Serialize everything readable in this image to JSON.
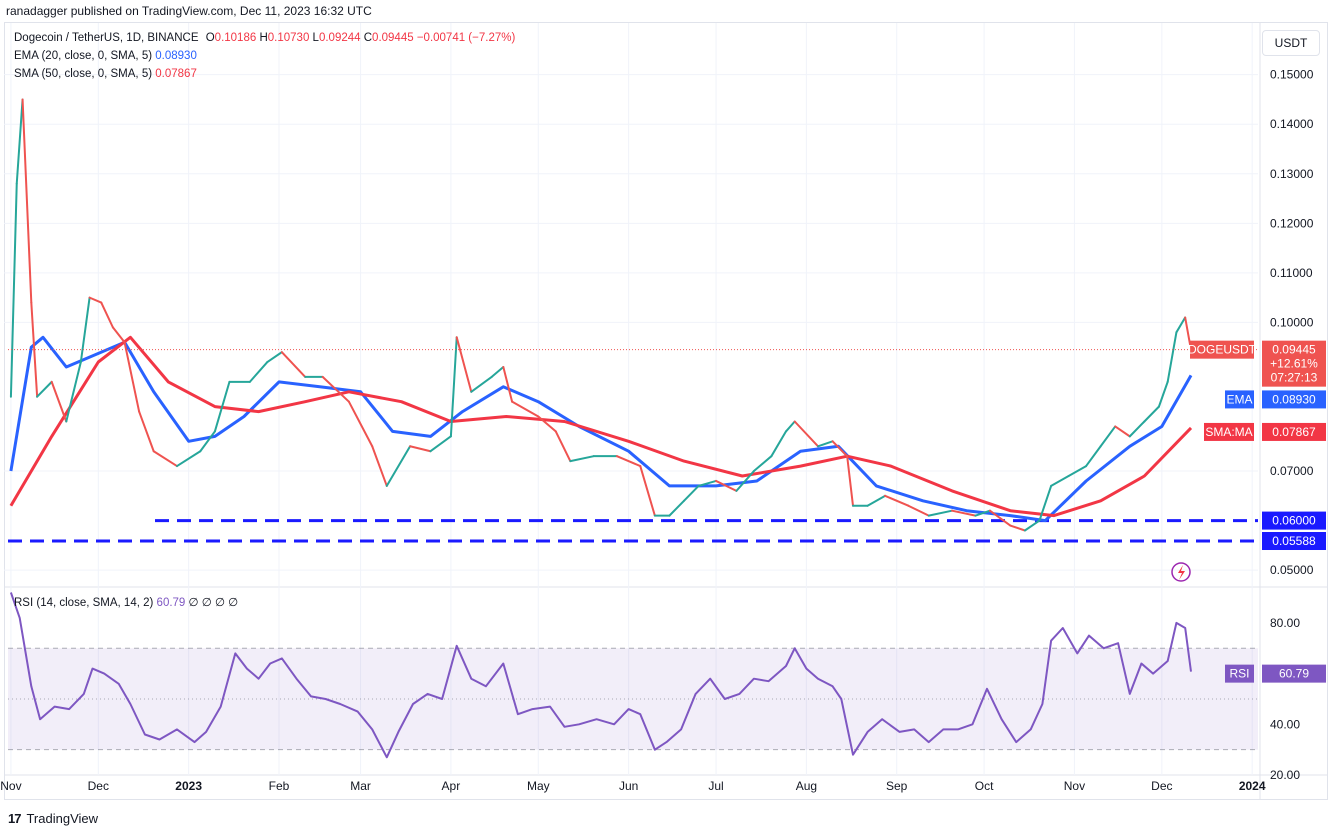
{
  "header": {
    "publisher": "ranadagger published on TradingView.com, Dec 11, 2023 16:32 UTC"
  },
  "legend": {
    "symbol": "Dogecoin / TetherUS, 1D, BINANCE",
    "open_label": "O",
    "open": "0.10186",
    "high_label": "H",
    "high": "0.10730",
    "low_label": "L",
    "low": "0.09244",
    "close_label": "C",
    "close": "0.09445",
    "change": "−0.00741 (−7.27%)",
    "ema_label": "EMA (20, close, 0, SMA, 5)",
    "ema_value": "0.08930",
    "sma_label": "SMA (50, close, 0, SMA, 5)",
    "sma_value": "0.07867",
    "rsi_label": "RSI (14, close, SMA, 14, 2)",
    "rsi_value": "60.79",
    "rsi_extra": "∅ ∅ ∅ ∅"
  },
  "currency_button": "USDT",
  "footer": {
    "brand": "TradingView",
    "logo": "17"
  },
  "colors": {
    "up": "#26a69a",
    "down": "#ef5350",
    "ema": "#2962ff",
    "sma": "#f23645",
    "rsi": "#7e57c2",
    "support": "#1a1aff"
  },
  "chart_data": [
    {
      "type": "candlestick",
      "title": "Dogecoin / TetherUS, 1D, BINANCE",
      "ylim": [
        0.047,
        0.157
      ],
      "y_ticks": [
        "0.15000",
        "0.14000",
        "0.13000",
        "0.12000",
        "0.11000",
        "0.10000",
        "0.07000",
        "0.05000"
      ],
      "x_ticks": [
        "Nov",
        "Dec",
        "2023",
        "Feb",
        "Mar",
        "Apr",
        "May",
        "Jun",
        "Jul",
        "Aug",
        "Sep",
        "Oct",
        "Nov",
        "Dec",
        "2024"
      ],
      "price_series": {
        "name": "DOGEUSDT",
        "points": [
          [
            "2022-11-01",
            0.085
          ],
          [
            "2022-11-03",
            0.128
          ],
          [
            "2022-11-05",
            0.145
          ],
          [
            "2022-11-08",
            0.104
          ],
          [
            "2022-11-10",
            0.085
          ],
          [
            "2022-11-15",
            0.088
          ],
          [
            "2022-11-20",
            0.08
          ],
          [
            "2022-11-25",
            0.092
          ],
          [
            "2022-11-28",
            0.105
          ],
          [
            "2022-12-02",
            0.104
          ],
          [
            "2022-12-06",
            0.099
          ],
          [
            "2022-12-10",
            0.096
          ],
          [
            "2022-12-15",
            0.082
          ],
          [
            "2022-12-20",
            0.074
          ],
          [
            "2022-12-28",
            0.071
          ],
          [
            "2023-01-05",
            0.074
          ],
          [
            "2023-01-10",
            0.078
          ],
          [
            "2023-01-15",
            0.088
          ],
          [
            "2023-01-22",
            0.088
          ],
          [
            "2023-01-28",
            0.092
          ],
          [
            "2023-02-02",
            0.094
          ],
          [
            "2023-02-10",
            0.089
          ],
          [
            "2023-02-16",
            0.089
          ],
          [
            "2023-02-25",
            0.084
          ],
          [
            "2023-03-05",
            0.075
          ],
          [
            "2023-03-10",
            0.067
          ],
          [
            "2023-03-18",
            0.075
          ],
          [
            "2023-03-25",
            0.074
          ],
          [
            "2023-04-01",
            0.077
          ],
          [
            "2023-04-03",
            0.097
          ],
          [
            "2023-04-08",
            0.086
          ],
          [
            "2023-04-15",
            0.089
          ],
          [
            "2023-04-19",
            0.091
          ],
          [
            "2023-04-22",
            0.084
          ],
          [
            "2023-05-01",
            0.081
          ],
          [
            "2023-05-07",
            0.078
          ],
          [
            "2023-05-12",
            0.072
          ],
          [
            "2023-05-20",
            0.073
          ],
          [
            "2023-05-28",
            0.073
          ],
          [
            "2023-06-05",
            0.071
          ],
          [
            "2023-06-10",
            0.061
          ],
          [
            "2023-06-15",
            0.061
          ],
          [
            "2023-06-20",
            0.064
          ],
          [
            "2023-06-25",
            0.067
          ],
          [
            "2023-07-01",
            0.068
          ],
          [
            "2023-07-08",
            0.066
          ],
          [
            "2023-07-14",
            0.07
          ],
          [
            "2023-07-20",
            0.073
          ],
          [
            "2023-07-25",
            0.078
          ],
          [
            "2023-07-28",
            0.08
          ],
          [
            "2023-08-05",
            0.075
          ],
          [
            "2023-08-10",
            0.076
          ],
          [
            "2023-08-15",
            0.073
          ],
          [
            "2023-08-17",
            0.063
          ],
          [
            "2023-08-22",
            0.063
          ],
          [
            "2023-08-28",
            0.065
          ],
          [
            "2023-09-05",
            0.063
          ],
          [
            "2023-09-12",
            0.061
          ],
          [
            "2023-09-20",
            0.062
          ],
          [
            "2023-09-28",
            0.061
          ],
          [
            "2023-10-03",
            0.062
          ],
          [
            "2023-10-10",
            0.059
          ],
          [
            "2023-10-15",
            0.058
          ],
          [
            "2023-10-20",
            0.06
          ],
          [
            "2023-10-24",
            0.067
          ],
          [
            "2023-10-30",
            0.069
          ],
          [
            "2023-11-05",
            0.071
          ],
          [
            "2023-11-10",
            0.075
          ],
          [
            "2023-11-15",
            0.079
          ],
          [
            "2023-11-20",
            0.077
          ],
          [
            "2023-11-25",
            0.08
          ],
          [
            "2023-11-30",
            0.083
          ],
          [
            "2023-12-03",
            0.088
          ],
          [
            "2023-12-06",
            0.098
          ],
          [
            "2023-12-09",
            0.101
          ],
          [
            "2023-12-11",
            0.0945
          ]
        ]
      },
      "series": [
        {
          "name": "EMA",
          "value": "0.08930",
          "points": [
            [
              "2022-11-01",
              0.07
            ],
            [
              "2022-11-08",
              0.095
            ],
            [
              "2022-11-12",
              0.097
            ],
            [
              "2022-11-20",
              0.091
            ],
            [
              "2022-11-28",
              0.093
            ],
            [
              "2022-12-10",
              0.096
            ],
            [
              "2022-12-20",
              0.086
            ],
            [
              "2023-01-01",
              0.076
            ],
            [
              "2023-01-10",
              0.077
            ],
            [
              "2023-01-20",
              0.081
            ],
            [
              "2023-02-01",
              0.088
            ],
            [
              "2023-02-15",
              0.087
            ],
            [
              "2023-03-01",
              0.086
            ],
            [
              "2023-03-12",
              0.078
            ],
            [
              "2023-03-25",
              0.077
            ],
            [
              "2023-04-05",
              0.082
            ],
            [
              "2023-04-19",
              0.087
            ],
            [
              "2023-05-01",
              0.084
            ],
            [
              "2023-05-15",
              0.079
            ],
            [
              "2023-06-01",
              0.074
            ],
            [
              "2023-06-15",
              0.067
            ],
            [
              "2023-07-01",
              0.067
            ],
            [
              "2023-07-15",
              0.068
            ],
            [
              "2023-07-30",
              0.074
            ],
            [
              "2023-08-12",
              0.075
            ],
            [
              "2023-08-25",
              0.067
            ],
            [
              "2023-09-10",
              0.064
            ],
            [
              "2023-09-25",
              0.062
            ],
            [
              "2023-10-10",
              0.061
            ],
            [
              "2023-10-22",
              0.06
            ],
            [
              "2023-11-05",
              0.068
            ],
            [
              "2023-11-20",
              0.075
            ],
            [
              "2023-12-01",
              0.079
            ],
            [
              "2023-12-11",
              0.0893
            ]
          ]
        },
        {
          "name": "SMA:MA",
          "value": "0.07867",
          "points": [
            [
              "2022-11-01",
              0.063
            ],
            [
              "2022-11-15",
              0.077
            ],
            [
              "2022-12-01",
              0.092
            ],
            [
              "2022-12-12",
              0.097
            ],
            [
              "2022-12-25",
              0.088
            ],
            [
              "2023-01-10",
              0.083
            ],
            [
              "2023-01-25",
              0.082
            ],
            [
              "2023-02-10",
              0.084
            ],
            [
              "2023-02-25",
              0.086
            ],
            [
              "2023-03-15",
              0.084
            ],
            [
              "2023-04-01",
              0.08
            ],
            [
              "2023-04-20",
              0.081
            ],
            [
              "2023-05-10",
              0.08
            ],
            [
              "2023-06-01",
              0.076
            ],
            [
              "2023-06-20",
              0.072
            ],
            [
              "2023-07-10",
              0.069
            ],
            [
              "2023-07-30",
              0.071
            ],
            [
              "2023-08-15",
              0.073
            ],
            [
              "2023-08-30",
              0.071
            ],
            [
              "2023-09-20",
              0.066
            ],
            [
              "2023-10-10",
              0.062
            ],
            [
              "2023-10-25",
              0.061
            ],
            [
              "2023-11-10",
              0.064
            ],
            [
              "2023-11-25",
              0.069
            ],
            [
              "2023-12-11",
              0.0787
            ]
          ]
        }
      ],
      "price_tag": {
        "label": "DOGEUSDT",
        "value": "0.09445",
        "change": "+12.61%",
        "countdown": "07:27:13"
      },
      "support_levels": [
        {
          "value": 0.06,
          "label": "0.06000"
        },
        {
          "value": 0.05588,
          "label": "0.05588"
        }
      ]
    },
    {
      "type": "line",
      "title": "RSI (14, close, SMA, 14, 2)",
      "ylim": [
        20,
        93
      ],
      "y_ticks": [
        "80.00",
        "40.00",
        "20.00"
      ],
      "band": [
        30,
        70
      ],
      "midline": 50,
      "series": [
        {
          "name": "RSI",
          "value": "60.79",
          "points": [
            [
              "2022-11-01",
              92
            ],
            [
              "2022-11-04",
              82
            ],
            [
              "2022-11-08",
              55
            ],
            [
              "2022-11-11",
              42
            ],
            [
              "2022-11-16",
              47
            ],
            [
              "2022-11-21",
              46
            ],
            [
              "2022-11-26",
              52
            ],
            [
              "2022-11-29",
              62
            ],
            [
              "2022-12-03",
              60
            ],
            [
              "2022-12-08",
              56
            ],
            [
              "2022-12-12",
              48
            ],
            [
              "2022-12-17",
              36
            ],
            [
              "2022-12-22",
              34
            ],
            [
              "2022-12-28",
              38
            ],
            [
              "2023-01-03",
              33
            ],
            [
              "2023-01-07",
              37
            ],
            [
              "2023-01-12",
              47
            ],
            [
              "2023-01-17",
              68
            ],
            [
              "2023-01-21",
              62
            ],
            [
              "2023-01-25",
              58
            ],
            [
              "2023-01-29",
              64
            ],
            [
              "2023-02-02",
              66
            ],
            [
              "2023-02-07",
              58
            ],
            [
              "2023-02-12",
              51
            ],
            [
              "2023-02-17",
              50
            ],
            [
              "2023-02-22",
              48
            ],
            [
              "2023-02-28",
              45
            ],
            [
              "2023-03-05",
              38
            ],
            [
              "2023-03-10",
              27
            ],
            [
              "2023-03-14",
              37
            ],
            [
              "2023-03-19",
              48
            ],
            [
              "2023-03-24",
              52
            ],
            [
              "2023-03-29",
              50
            ],
            [
              "2023-04-03",
              71
            ],
            [
              "2023-04-08",
              58
            ],
            [
              "2023-04-13",
              55
            ],
            [
              "2023-04-19",
              64
            ],
            [
              "2023-04-24",
              44
            ],
            [
              "2023-04-29",
              46
            ],
            [
              "2023-05-05",
              47
            ],
            [
              "2023-05-10",
              39
            ],
            [
              "2023-05-15",
              40
            ],
            [
              "2023-05-21",
              42
            ],
            [
              "2023-05-27",
              40
            ],
            [
              "2023-06-01",
              46
            ],
            [
              "2023-06-05",
              44
            ],
            [
              "2023-06-10",
              30
            ],
            [
              "2023-06-14",
              33
            ],
            [
              "2023-06-19",
              38
            ],
            [
              "2023-06-24",
              52
            ],
            [
              "2023-06-29",
              58
            ],
            [
              "2023-07-04",
              50
            ],
            [
              "2023-07-09",
              52
            ],
            [
              "2023-07-14",
              58
            ],
            [
              "2023-07-19",
              57
            ],
            [
              "2023-07-25",
              63
            ],
            [
              "2023-07-28",
              70
            ],
            [
              "2023-08-01",
              62
            ],
            [
              "2023-08-05",
              58
            ],
            [
              "2023-08-10",
              55
            ],
            [
              "2023-08-13",
              50
            ],
            [
              "2023-08-17",
              28
            ],
            [
              "2023-08-22",
              37
            ],
            [
              "2023-08-27",
              42
            ],
            [
              "2023-09-02",
              37
            ],
            [
              "2023-09-07",
              38
            ],
            [
              "2023-09-12",
              33
            ],
            [
              "2023-09-17",
              38
            ],
            [
              "2023-09-22",
              38
            ],
            [
              "2023-09-27",
              40
            ],
            [
              "2023-10-02",
              54
            ],
            [
              "2023-10-07",
              42
            ],
            [
              "2023-10-12",
              33
            ],
            [
              "2023-10-17",
              38
            ],
            [
              "2023-10-21",
              48
            ],
            [
              "2023-10-24",
              73
            ],
            [
              "2023-10-28",
              78
            ],
            [
              "2023-11-02",
              68
            ],
            [
              "2023-11-06",
              75
            ],
            [
              "2023-11-11",
              70
            ],
            [
              "2023-11-16",
              72
            ],
            [
              "2023-11-20",
              52
            ],
            [
              "2023-11-24",
              64
            ],
            [
              "2023-11-28",
              60
            ],
            [
              "2023-12-03",
              65
            ],
            [
              "2023-12-06",
              80
            ],
            [
              "2023-12-09",
              78
            ],
            [
              "2023-12-11",
              60.79
            ]
          ]
        }
      ]
    }
  ]
}
